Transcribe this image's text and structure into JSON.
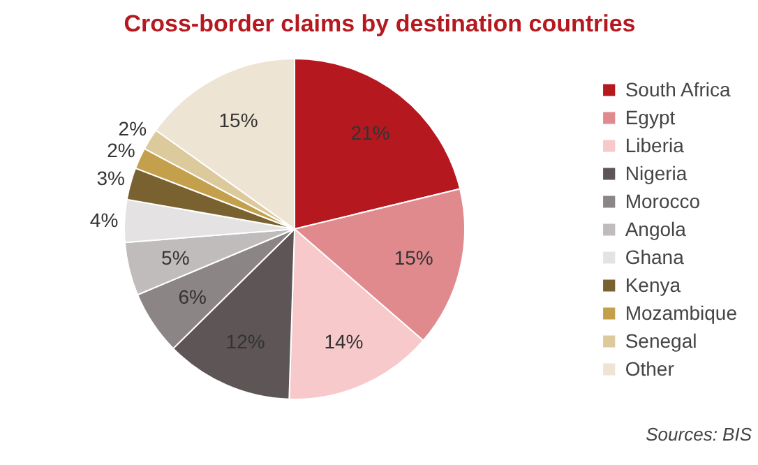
{
  "chart_data": {
    "type": "pie",
    "title": "Cross-border claims by destination countries",
    "categories": [
      "South Africa",
      "Egypt",
      "Liberia",
      "Nigeria",
      "Morocco",
      "Angola",
      "Ghana",
      "Kenya",
      "Mozambique",
      "Senegal",
      "Other"
    ],
    "values": [
      21,
      15,
      14,
      12,
      6,
      5,
      4,
      3,
      2,
      2,
      15
    ],
    "colors": [
      "#b5191f",
      "#e08a8e",
      "#f7c9cb",
      "#5e5556",
      "#8c8585",
      "#c0bcbc",
      "#e4e2e2",
      "#7a6230",
      "#c4a04c",
      "#dcc99c",
      "#ede4d3"
    ],
    "value_labels": [
      "21%",
      "15%",
      "14%",
      "12%",
      "6%",
      "5%",
      "4%",
      "3%",
      "2%",
      "2%",
      "15%"
    ],
    "legend": "right",
    "annotations": [
      "Sources: BIS"
    ]
  }
}
